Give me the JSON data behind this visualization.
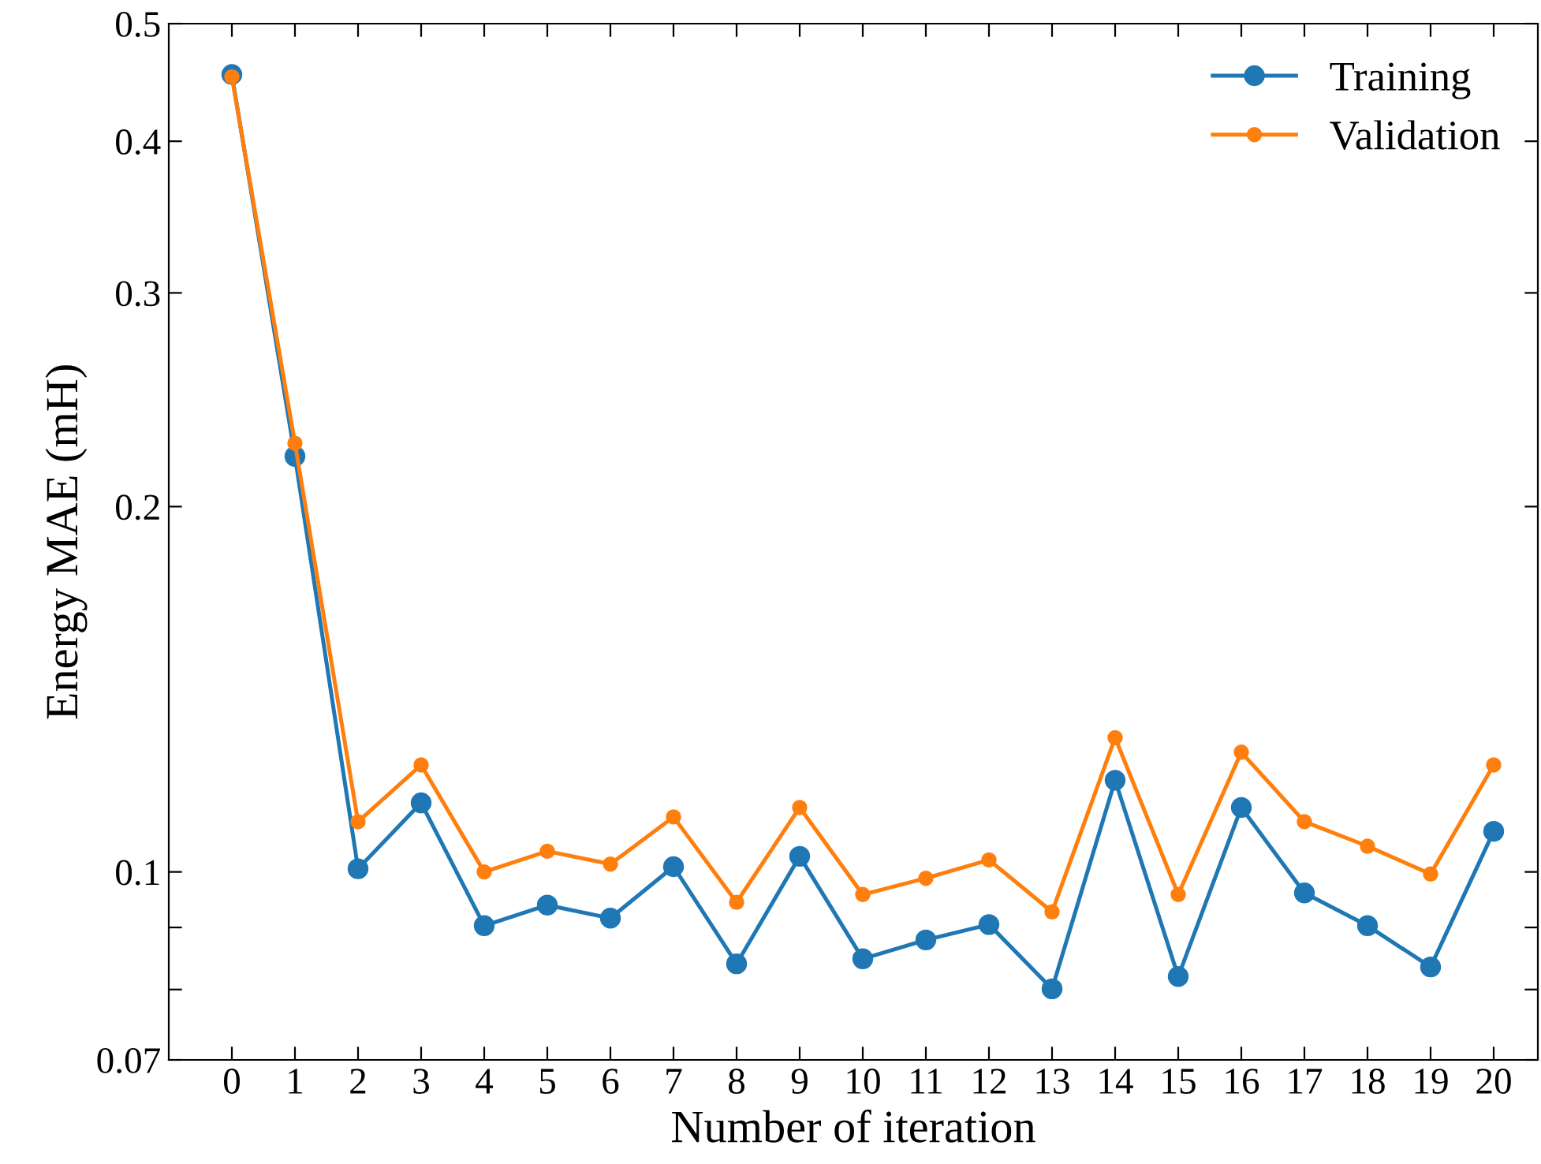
{
  "chart_data": {
    "type": "line",
    "xlabel": "Number of iteration",
    "ylabel": "Energy MAE (mH)",
    "x": [
      0,
      1,
      2,
      3,
      4,
      5,
      6,
      7,
      8,
      9,
      10,
      11,
      12,
      13,
      14,
      15,
      16,
      17,
      18,
      19,
      20
    ],
    "series": [
      {
        "name": "Training",
        "color": "#1f77b4",
        "values": [
          0.454,
          0.22,
          0.1006,
          0.114,
          0.0903,
          0.0939,
          0.0916,
          0.101,
          0.084,
          0.103,
          0.0848,
          0.0879,
          0.0905,
          0.0801,
          0.119,
          0.082,
          0.113,
          0.0961,
          0.0903,
          0.0835,
          0.108
        ]
      },
      {
        "name": "Validation",
        "color": "#ff7f0e",
        "values": [
          0.452,
          0.2255,
          0.11,
          0.1225,
          0.1,
          0.104,
          0.1015,
          0.111,
          0.0944,
          0.113,
          0.0958,
          0.0988,
          0.1023,
          0.0927,
          0.129,
          0.0958,
          0.1255,
          0.11,
          0.105,
          0.0996,
          0.1225
        ]
      }
    ],
    "log": "y",
    "xlim": [
      -1,
      20.7
    ],
    "ylim": [
      0.07,
      0.5
    ],
    "xticks": [
      0,
      1,
      2,
      3,
      4,
      5,
      6,
      7,
      8,
      9,
      10,
      11,
      12,
      13,
      14,
      15,
      16,
      17,
      18,
      19,
      20
    ],
    "yticks": [
      0.07,
      {
        "value": 0.08,
        "label": null
      },
      {
        "value": 0.09,
        "label": null
      },
      0.1,
      0.2,
      0.3,
      0.4,
      0.5
    ],
    "marker": "circle",
    "line_style": "solid",
    "legend": "top right",
    "grid": false
  }
}
